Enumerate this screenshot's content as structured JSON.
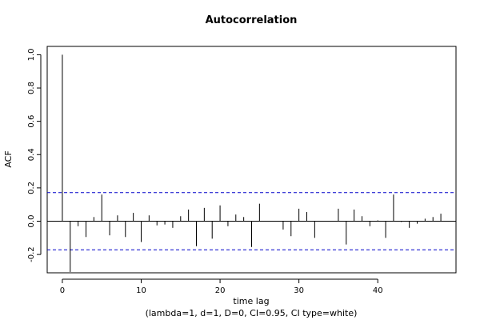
{
  "chart_data": {
    "type": "bar",
    "title": "Autocorrelation",
    "xlabel": "time lag",
    "subtitle": "(lambda=1, d=1, D=0, CI=0.95, CI type=white)",
    "ylabel": "ACF",
    "xlim": [
      -1.92,
      49.92
    ],
    "ylim": [
      -0.31,
      1.05
    ],
    "x_ticks": [
      0,
      10,
      20,
      30,
      40
    ],
    "y_ticks": [
      -0.2,
      0.0,
      0.2,
      0.4,
      0.6,
      0.8,
      1.0
    ],
    "x_tick_labels": [
      "0",
      "10",
      "20",
      "30",
      "40"
    ],
    "y_tick_labels": [
      "-0.2",
      "0.0",
      "0.2",
      "0.4",
      "0.6",
      "0.8",
      "1.0"
    ],
    "ci_upper": 0.172,
    "ci_lower": -0.172,
    "colors": {
      "bars": "#000000",
      "ci": "#0000cc",
      "zero": "#000000"
    },
    "lags": [
      0,
      1,
      2,
      3,
      4,
      5,
      6,
      7,
      8,
      9,
      10,
      11,
      12,
      13,
      14,
      15,
      16,
      17,
      18,
      19,
      20,
      21,
      22,
      23,
      24,
      25,
      26,
      27,
      28,
      29,
      30,
      31,
      32,
      33,
      34,
      35,
      36,
      37,
      38,
      39,
      40,
      41,
      42,
      43,
      44,
      45,
      46,
      47,
      48
    ],
    "acf": [
      1.0,
      -0.305,
      -0.03,
      -0.095,
      0.025,
      0.16,
      -0.085,
      0.035,
      -0.095,
      0.05,
      -0.125,
      0.035,
      -0.025,
      -0.02,
      -0.04,
      0.03,
      0.07,
      -0.15,
      0.08,
      -0.105,
      0.095,
      -0.03,
      0.04,
      0.025,
      -0.155,
      0.105,
      0.0,
      0.0,
      -0.05,
      -0.09,
      0.075,
      0.055,
      -0.1,
      0.0,
      0.0,
      0.075,
      -0.14,
      0.07,
      0.03,
      -0.03,
      0.005,
      -0.1,
      0.16,
      -0.005,
      -0.04,
      -0.015,
      0.015,
      0.025,
      0.045
    ]
  }
}
